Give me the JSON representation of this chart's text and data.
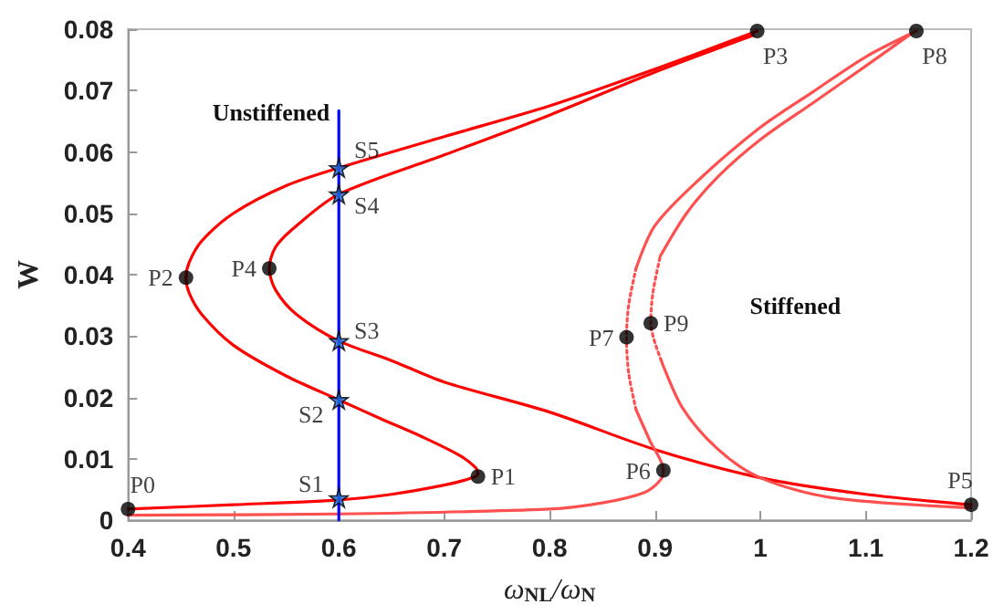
{
  "chart_data": {
    "type": "line",
    "xlabel": "ω$_{NL}$/ω$_{N}$",
    "ylabel": "W",
    "xlim": [
      0.4,
      1.2
    ],
    "xticks": [
      0.4,
      0.5,
      0.6,
      0.7,
      0.8,
      0.9,
      1,
      1.1,
      1.2
    ],
    "ylim": [
      0,
      0.08
    ],
    "yticks": [
      0,
      0.01,
      0.02,
      0.03,
      0.04,
      0.05,
      0.06,
      0.07,
      0.08
    ],
    "grid": false,
    "marker": "none",
    "line_style": "solid",
    "series": [
      {
        "color": "#ff0000",
        "x": [
          0.4,
          0.5,
          0.6,
          0.65,
          0.7,
          0.725,
          0.732,
          0.73,
          0.715,
          0.68,
          0.64,
          0.6,
          0.55,
          0.5,
          0.47,
          0.458,
          0.455,
          0.458,
          0.47,
          0.5,
          0.55,
          0.6,
          0.7,
          0.8,
          0.9,
          0.997
        ],
        "values": [
          0.0018,
          0.0025,
          0.0033,
          0.0042,
          0.0057,
          0.0068,
          0.0075,
          0.0085,
          0.0105,
          0.0135,
          0.0165,
          0.0196,
          0.0235,
          0.0285,
          0.0335,
          0.037,
          0.0395,
          0.042,
          0.0455,
          0.05,
          0.0545,
          0.0574,
          0.0625,
          0.0675,
          0.0735,
          0.0797
        ]
      },
      {
        "color": "#ff0000",
        "x": [
          1.2,
          1.1,
          1.0,
          0.9,
          0.8,
          0.7,
          0.65,
          0.6,
          0.56,
          0.54,
          0.534,
          0.54,
          0.56,
          0.6,
          0.7,
          0.8,
          0.9,
          0.993
        ],
        "values": [
          0.0025,
          0.0042,
          0.0069,
          0.0115,
          0.0176,
          0.0225,
          0.026,
          0.0292,
          0.0335,
          0.0375,
          0.041,
          0.0445,
          0.048,
          0.0531,
          0.0595,
          0.066,
          0.073,
          0.079
        ]
      },
      {
        "color": "#ff5050",
        "x": [
          0.4,
          0.6,
          0.8,
          0.85,
          0.89,
          0.905,
          0.908,
          0.895,
          0.882
        ],
        "values": [
          0.0008,
          0.001,
          0.0018,
          0.0028,
          0.0045,
          0.0065,
          0.0081,
          0.013,
          0.018
        ]
      },
      {
        "color": "#ff5050",
        "line_style": "dotted",
        "x": [
          0.882,
          0.875,
          0.873,
          0.875,
          0.882
        ],
        "values": [
          0.018,
          0.024,
          0.0298,
          0.035,
          0.041
        ]
      },
      {
        "color": "#ff5050",
        "x": [
          0.882,
          0.9,
          0.94,
          1.0,
          1.05,
          1.1,
          1.148
        ],
        "values": [
          0.041,
          0.048,
          0.0552,
          0.064,
          0.0698,
          0.0755,
          0.0797
        ]
      },
      {
        "color": "#ff5050",
        "x": [
          1.2,
          1.066,
          1.0,
          0.96,
          0.926,
          0.906
        ],
        "values": [
          0.002,
          0.0037,
          0.0069,
          0.0115,
          0.0183,
          0.026
        ]
      },
      {
        "color": "#ff5050",
        "line_style": "dotted",
        "x": [
          0.906,
          0.896,
          0.898,
          0.905
        ],
        "values": [
          0.026,
          0.0321,
          0.037,
          0.043
        ]
      },
      {
        "color": "#ff5050",
        "x": [
          0.905,
          0.93,
          0.96,
          1.0,
          1.05,
          1.1,
          1.145
        ],
        "values": [
          0.043,
          0.05,
          0.056,
          0.062,
          0.068,
          0.074,
          0.0795
        ]
      },
      {
        "color": "#0000ff",
        "x": [
          0.6,
          0.6
        ],
        "values": [
          0,
          0.0667
        ]
      },
      {
        "type": "scatter",
        "marker": "circle",
        "color": "#000000",
        "x": [
          0.4,
          0.732,
          0.455,
          0.997,
          0.534,
          1.2,
          0.908,
          0.873,
          1.148,
          0.896
        ],
        "values": [
          0.0018,
          0.0071,
          0.0395,
          0.0797,
          0.041,
          0.0025,
          0.0081,
          0.0298,
          0.0797,
          0.0321
        ],
        "value_labels": [
          "P0",
          "P1",
          "P2",
          "P3",
          "P4",
          "P5",
          "P6",
          "P7",
          "P8",
          "P9"
        ]
      },
      {
        "type": "scatter",
        "marker": "star",
        "color": "#1e6fd9",
        "x": [
          0.6,
          0.6,
          0.6,
          0.6,
          0.6
        ],
        "values": [
          0.0036,
          0.0196,
          0.0292,
          0.0531,
          0.0574
        ],
        "value_labels": [
          "S1",
          "S2",
          "S3",
          "S4",
          "S5"
        ]
      }
    ],
    "annotations": [
      "Unstiffened",
      "Stiffened"
    ]
  }
}
